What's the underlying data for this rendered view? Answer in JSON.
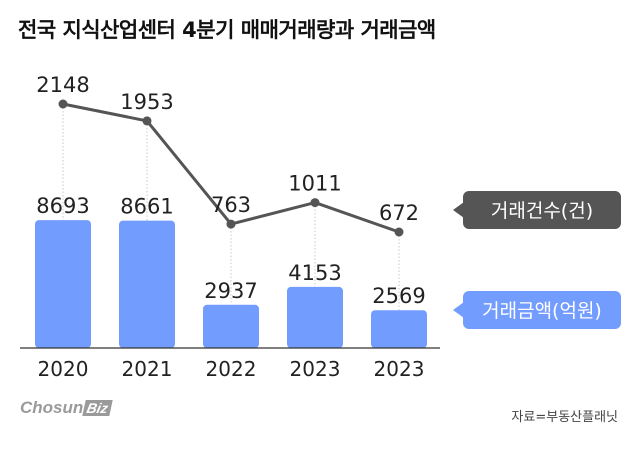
{
  "title": "전국 지식산업센터 4분기 매매거래량과 거래금액",
  "chart_data": {
    "type": "bar",
    "categories": [
      "2020",
      "2021",
      "2022",
      "2023",
      "2023"
    ],
    "series": [
      {
        "name": "거래금액(억원)",
        "type": "bar",
        "values": [
          8693,
          8661,
          2937,
          4153,
          2569
        ],
        "color": "#739cff"
      },
      {
        "name": "거래건수(건)",
        "type": "line",
        "values": [
          2148,
          1953,
          763,
          1011,
          672
        ],
        "color": "#555555"
      }
    ],
    "legend": {
      "placement": "right"
    }
  },
  "logo": {
    "main": "Chosun",
    "badge": "Biz"
  },
  "source": "자료=부동산플래닛"
}
